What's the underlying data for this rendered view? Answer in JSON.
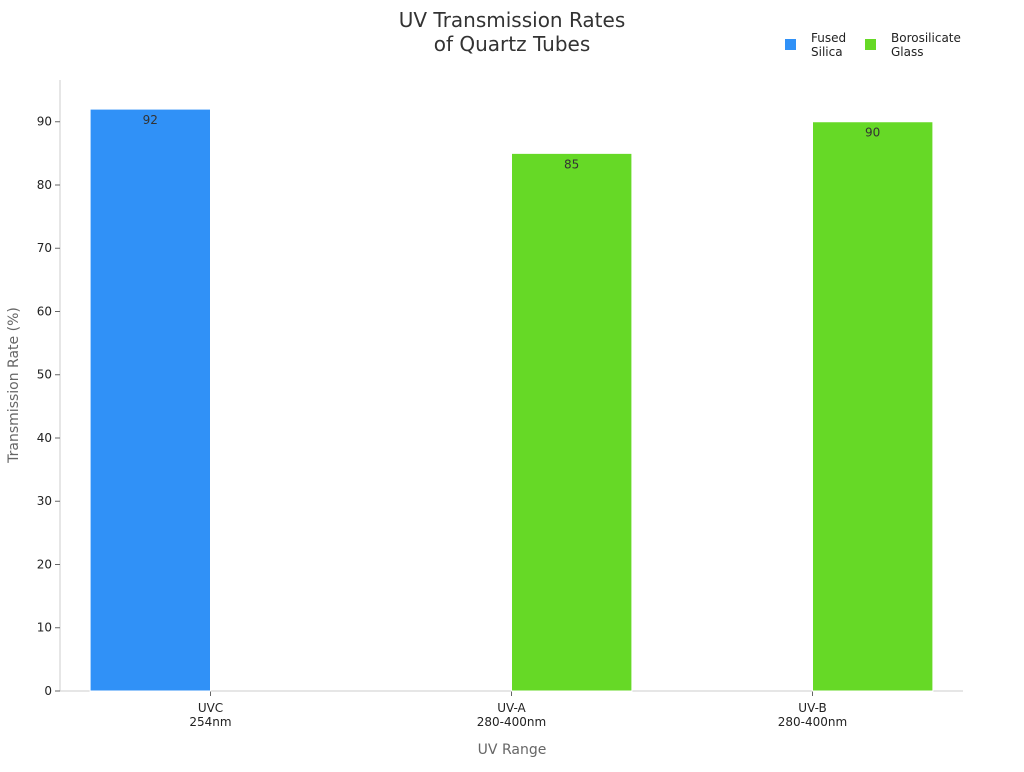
{
  "chart_data": {
    "type": "bar",
    "title": "UV Transmission Rates\nof Quartz Tubes",
    "x_label": "UV Range",
    "y_label": "Transmission Rate (%)",
    "categories": [
      "UVC\n254nm",
      "UV-A\n280-400nm",
      "UV-B\n280-400nm"
    ],
    "series": [
      {
        "name": "Fused\nSilica",
        "color": "#3091f7",
        "values": [
          92,
          null,
          null
        ]
      },
      {
        "name": "Borosilicate\nGlass",
        "color": "#66d926",
        "values": [
          null,
          85,
          90
        ]
      }
    ],
    "ylim": [
      0,
      96.6
    ],
    "yticks": [
      0,
      10,
      20,
      30,
      40,
      50,
      60,
      70,
      80,
      90
    ],
    "grid": false,
    "legend": "top-right"
  }
}
